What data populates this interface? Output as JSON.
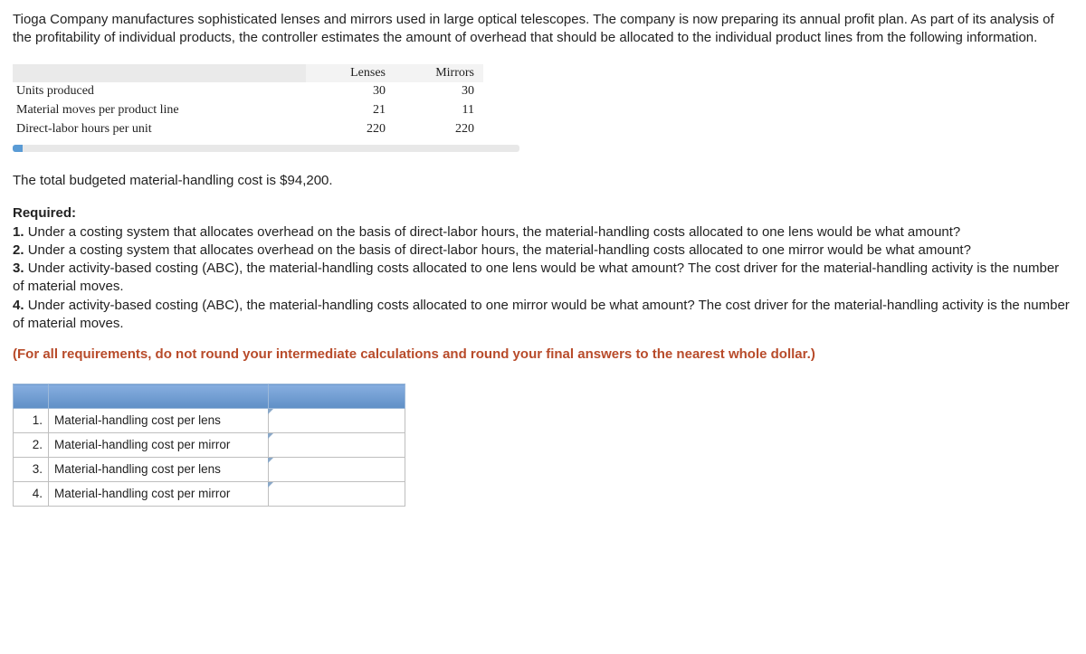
{
  "intro": "Tioga Company manufactures sophisticated lenses and mirrors used in large optical telescopes. The company is now preparing its annual profit plan. As part of its analysis of the profitability of individual products, the controller estimates the amount of overhead that should be allocated to the individual product lines from the following information.",
  "data_table": {
    "columns": [
      "Lenses",
      "Mirrors"
    ],
    "rows": [
      {
        "label": "Units produced",
        "lenses": "30",
        "mirrors": "30"
      },
      {
        "label": "Material moves per product line",
        "lenses": "21",
        "mirrors": "11"
      },
      {
        "label": "Direct-labor hours per unit",
        "lenses": "220",
        "mirrors": "220"
      }
    ]
  },
  "budget_line": "The total budgeted material-handling cost is $94,200.",
  "required_header": "Required:",
  "requirements": [
    {
      "num": "1.",
      "text": "Under a costing system that allocates overhead on the basis of direct-labor hours, the material-handling costs allocated to one lens would be what amount?"
    },
    {
      "num": "2.",
      "text": "Under a costing system that allocates overhead on the basis of direct-labor hours, the material-handling costs allocated to one mirror would be what amount?"
    },
    {
      "num": "3.",
      "text": "Under activity-based costing (ABC), the material-handling costs allocated to one lens would be what amount? The cost driver for the material-handling activity is the number of material moves."
    },
    {
      "num": "4.",
      "text": "Under activity-based costing (ABC), the material-handling costs allocated to one mirror would be what amount? The cost driver for the material-handling activity is the number of material moves."
    }
  ],
  "note": "(For all requirements, do not round your intermediate calculations and round your final answers to the nearest whole dollar.)",
  "answer_table": {
    "rows": [
      {
        "num": "1.",
        "label": "Material-handling cost per lens",
        "value": ""
      },
      {
        "num": "2.",
        "label": "Material-handling cost per mirror",
        "value": ""
      },
      {
        "num": "3.",
        "label": "Material-handling cost per lens",
        "value": ""
      },
      {
        "num": "4.",
        "label": "Material-handling cost per mirror",
        "value": ""
      }
    ]
  }
}
